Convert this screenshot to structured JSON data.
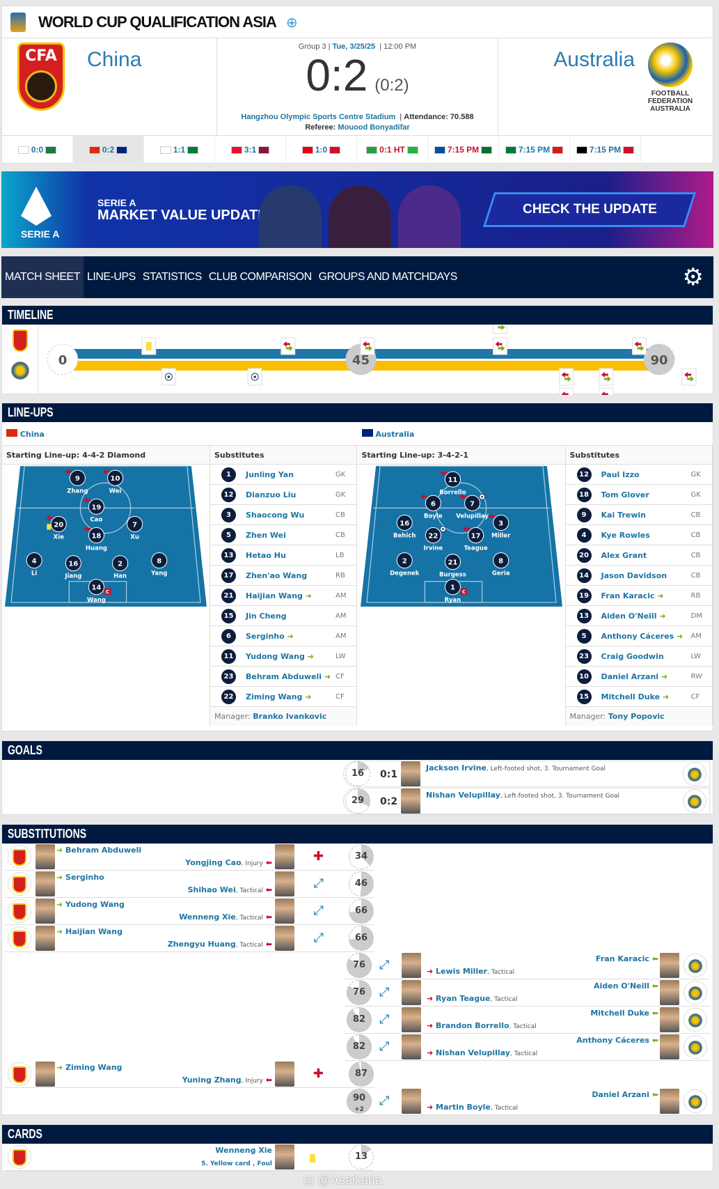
{
  "header": {
    "title": "WORLD CUP QUALIFICATION ASIA",
    "home": "China",
    "away": "Australia",
    "home_logo_text": "CFA",
    "away_logo_text": "FOOTBALL FEDERATION AUSTRALIA",
    "group": "Group 3",
    "date": "Tue, 3/25/25",
    "time": "12:00 PM",
    "score": "0:2",
    "halftime": "(0:2)",
    "stadium": "Hangzhou Olympic Sports Centre Stadium",
    "attendance_label": "Attendance:",
    "attendance": "70.588",
    "referee_label": "Referee:",
    "referee": "Mouood Bonyadifar"
  },
  "strip": [
    {
      "text": "0:0",
      "f1": "#ffffff",
      "f2": "#1a7a3a",
      "red": false
    },
    {
      "text": "0:2",
      "f1": "#de2910",
      "f2": "#00247d",
      "red": false,
      "active": true
    },
    {
      "text": "1:1",
      "f1": "#ffffff",
      "f2": "#007a3d",
      "red": false
    },
    {
      "text": "3:1",
      "f1": "#e8112d",
      "f2": "#8a1538",
      "red": false
    },
    {
      "text": "1:0",
      "f1": "#e70011",
      "f2": "#ce1126",
      "red": false
    },
    {
      "text": "0:1 HT",
      "f1": "#239f40",
      "f2": "#1eb53a",
      "red": true
    },
    {
      "text": "7:15 PM",
      "f1": "#024fa2",
      "f2": "#00732f",
      "red": true
    },
    {
      "text": "7:15 PM",
      "f1": "#007a3d",
      "f2": "#db161b",
      "red": false
    },
    {
      "text": "7:15 PM",
      "f1": "#000000",
      "f2": "#ce1126",
      "red": false
    }
  ],
  "banner": {
    "logo_text": "SERIE A",
    "line1": "SERIE A",
    "line2": "MARKET VALUE UPDATE",
    "cta": "CHECK THE UPDATE"
  },
  "nav": {
    "tabs": [
      "MATCH SHEET",
      "LINE-UPS",
      "STATISTICS",
      "CLUB COMPARISON",
      "GROUPS AND MATCHDAYS"
    ],
    "settings_icon": "gear-icon"
  },
  "timeline": {
    "title": "TIMELINE",
    "marks": [
      "0",
      "45",
      "90"
    ],
    "home_color": "#1f77a8",
    "away_color": "#fbbd00",
    "home_events": [
      {
        "min": 13,
        "type": "yellow-card"
      },
      {
        "min": 34,
        "type": "sub"
      },
      {
        "min": 46,
        "type": "sub"
      },
      {
        "min": 66,
        "type": "sub"
      },
      {
        "min": 66,
        "type": "sub"
      },
      {
        "min": 87,
        "type": "sub"
      }
    ],
    "away_events": [
      {
        "min": 16,
        "type": "goal"
      },
      {
        "min": 29,
        "type": "goal"
      },
      {
        "min": 76,
        "type": "sub"
      },
      {
        "min": 76,
        "type": "sub"
      },
      {
        "min": 82,
        "type": "sub"
      },
      {
        "min": 82,
        "type": "sub"
      },
      {
        "min": 92,
        "type": "sub"
      }
    ]
  },
  "lineups": {
    "title": "LINE-UPS",
    "home": {
      "team": "China",
      "formation": "Starting Line-up: 4-4-2 Diamond",
      "subs_label": "Substitutes",
      "players": [
        {
          "no": "9",
          "name": "Zhang",
          "out": true
        },
        {
          "no": "10",
          "name": "Wei",
          "out": true
        },
        {
          "no": "19",
          "name": "Cao",
          "out": true
        },
        {
          "no": "20",
          "name": "Xie",
          "out": true,
          "yellow": true
        },
        {
          "no": "18",
          "name": "Huang",
          "out": true
        },
        {
          "no": "7",
          "name": "Xu"
        },
        {
          "no": "4",
          "name": "Li"
        },
        {
          "no": "16",
          "name": "Jiang"
        },
        {
          "no": "2",
          "name": "Han"
        },
        {
          "no": "8",
          "name": "Yang"
        },
        {
          "no": "14",
          "name": "Wang",
          "captain": true
        }
      ],
      "subs": [
        {
          "no": "1",
          "name": "Junling Yan",
          "pos": "GK"
        },
        {
          "no": "12",
          "name": "Dianzuo Liu",
          "pos": "GK"
        },
        {
          "no": "3",
          "name": "Shaocong Wu",
          "pos": "CB"
        },
        {
          "no": "5",
          "name": "Zhen Wei",
          "pos": "CB"
        },
        {
          "no": "13",
          "name": "Hetao Hu",
          "pos": "LB"
        },
        {
          "no": "17",
          "name": "Zhen'ao Wang",
          "pos": "RB"
        },
        {
          "no": "21",
          "name": "Haijian Wang",
          "pos": "AM",
          "in": true
        },
        {
          "no": "15",
          "name": "Jin Cheng",
          "pos": "AM"
        },
        {
          "no": "6",
          "name": "Serginho",
          "pos": "AM",
          "in": true
        },
        {
          "no": "11",
          "name": "Yudong Wang",
          "pos": "LW",
          "in": true
        },
        {
          "no": "23",
          "name": "Behram Abduweli",
          "pos": "CF",
          "in": true
        },
        {
          "no": "22",
          "name": "Ziming Wang",
          "pos": "CF",
          "in": true
        }
      ],
      "manager_label": "Manager:",
      "manager": "Branko Ivankovic"
    },
    "away": {
      "team": "Australia",
      "formation": "Starting Line-up: 3-4-2-1",
      "subs_label": "Substitutes",
      "players": [
        {
          "no": "11",
          "name": "Borrello",
          "out": true
        },
        {
          "no": "6",
          "name": "Boyle",
          "out": true
        },
        {
          "no": "7",
          "name": "Velupillay",
          "out": true,
          "goal": true
        },
        {
          "no": "16",
          "name": "Behich"
        },
        {
          "no": "22",
          "name": "Irvine",
          "goal": true
        },
        {
          "no": "17",
          "name": "Teague",
          "out": true
        },
        {
          "no": "3",
          "name": "Miller",
          "out": true
        },
        {
          "no": "2",
          "name": "Degenek"
        },
        {
          "no": "21",
          "name": "Burgess"
        },
        {
          "no": "8",
          "name": "Geria"
        },
        {
          "no": "1",
          "name": "Ryan",
          "captain": true
        }
      ],
      "subs": [
        {
          "no": "12",
          "name": "Paul Izzo",
          "pos": "GK"
        },
        {
          "no": "18",
          "name": "Tom Glover",
          "pos": "GK"
        },
        {
          "no": "9",
          "name": "Kai Trewin",
          "pos": "CB"
        },
        {
          "no": "4",
          "name": "Kye Rowles",
          "pos": "CB"
        },
        {
          "no": "20",
          "name": "Alex Grant",
          "pos": "CB"
        },
        {
          "no": "14",
          "name": "Jason Davidson",
          "pos": "CB"
        },
        {
          "no": "19",
          "name": "Fran Karacic",
          "pos": "RB",
          "in": true
        },
        {
          "no": "13",
          "name": "Aiden O'Neill",
          "pos": "DM",
          "in": true
        },
        {
          "no": "5",
          "name": "Anthony Cáceres",
          "pos": "AM",
          "in": true
        },
        {
          "no": "23",
          "name": "Craig Goodwin",
          "pos": "LW"
        },
        {
          "no": "10",
          "name": "Daniel Arzani",
          "pos": "RW",
          "in": true
        },
        {
          "no": "15",
          "name": "Mitchell Duke",
          "pos": "CF",
          "in": true
        }
      ],
      "manager_label": "Manager:",
      "manager": "Tony Popovic"
    },
    "captain_badge": "C"
  },
  "goals": {
    "title": "GOALS",
    "items": [
      {
        "min": "16",
        "score": "0:1",
        "player": "Jackson Irvine",
        "detail": ", Left-footed shot, 3. Tournament Goal"
      },
      {
        "min": "29",
        "score": "0:2",
        "player": "Nishan Velupillay",
        "detail": ", Left-footed shot, 3. Tournament Goal"
      }
    ]
  },
  "substitutions": {
    "title": "SUBSTITUTIONS",
    "items": [
      {
        "side": "home",
        "min": "34",
        "in": "Behram Abduweli",
        "out": "Yongjing Cao",
        "reason": ", Injury",
        "kind": "injury"
      },
      {
        "side": "home",
        "min": "46",
        "in": "Serginho",
        "out": "Shihao Wei",
        "reason": ", Tactical",
        "kind": "tactical"
      },
      {
        "side": "home",
        "min": "66",
        "in": "Yudong Wang",
        "out": "Wenneng Xie",
        "reason": ", Tactical",
        "kind": "tactical"
      },
      {
        "side": "home",
        "min": "66",
        "in": "Haijian Wang",
        "out": "Zhengyu Huang",
        "reason": ", Tactical",
        "kind": "tactical"
      },
      {
        "side": "away",
        "min": "76",
        "in": "Fran Karacic",
        "out": "Lewis Miller",
        "reason": ", Tactical",
        "kind": "tactical"
      },
      {
        "side": "away",
        "min": "76",
        "in": "Aiden O'Neill",
        "out": "Ryan Teague",
        "reason": ", Tactical",
        "kind": "tactical"
      },
      {
        "side": "away",
        "min": "82",
        "in": "Mitchell Duke",
        "out": "Brandon Borrello",
        "reason": ", Tactical",
        "kind": "tactical"
      },
      {
        "side": "away",
        "min": "82",
        "in": "Anthony Cáceres",
        "out": "Nishan Velupillay",
        "reason": ", Tactical",
        "kind": "tactical"
      },
      {
        "side": "home",
        "min": "87",
        "in": "Ziming Wang",
        "out": "Yuning Zhang",
        "reason": ", Injury",
        "kind": "injury"
      },
      {
        "side": "away",
        "min": "90",
        "extra": "+2",
        "in": "Daniel Arzani",
        "out": "Martin Boyle",
        "reason": ", Tactical",
        "kind": "tactical"
      }
    ]
  },
  "cards": {
    "title": "CARDS",
    "items": [
      {
        "min": "13",
        "player": "Wenneng Xie",
        "detail": "5. Yellow card , Foul",
        "color": "#f7e03a"
      }
    ]
  },
  "watermark": "@Asaikana"
}
